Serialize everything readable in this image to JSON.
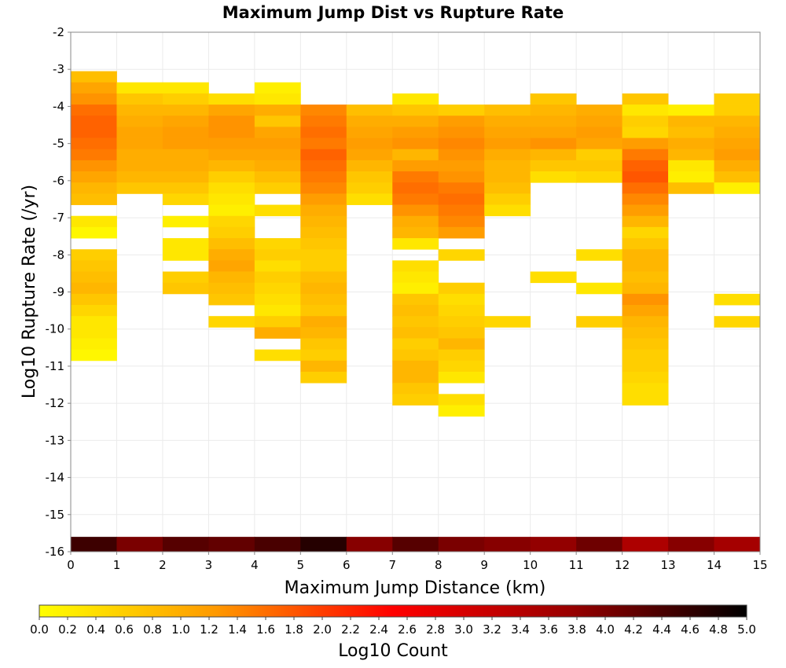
{
  "chart_data": {
    "type": "heatmap",
    "title": "Maximum Jump Dist vs Rupture Rate",
    "xlabel": "Maximum Jump Distance (km)",
    "ylabel": "Log10 Rupture Rate (/yr)",
    "xlim": [
      0,
      15
    ],
    "ylim": [
      -16,
      -2
    ],
    "xticks": [
      0,
      1,
      2,
      3,
      4,
      5,
      6,
      7,
      8,
      9,
      10,
      11,
      12,
      13,
      14,
      15
    ],
    "yticks": [
      -2,
      -3,
      -4,
      -5,
      -6,
      -7,
      -8,
      -9,
      -10,
      -11,
      -12,
      -13,
      -14,
      -15,
      -16
    ],
    "grid": true,
    "colorbar": {
      "label": "Log10 Count",
      "range": [
        0,
        5
      ],
      "ticks": [
        "0.0",
        "0.2",
        "0.4",
        "0.6",
        "0.8",
        "1.0",
        "1.2",
        "1.4",
        "1.6",
        "1.8",
        "2.0",
        "2.2",
        "2.4",
        "2.6",
        "2.8",
        "3.0",
        "3.2",
        "3.4",
        "3.6",
        "3.8",
        "4.0",
        "4.2",
        "4.4",
        "4.6",
        "4.8",
        "5.0"
      ],
      "colors": [
        "#ffff00",
        "#ff9900",
        "#ff0000",
        "#990000",
        "#000000"
      ]
    },
    "bin_height": 0.3,
    "columns": [
      {
        "x_start": 0,
        "y_start": -3.05,
        "values": [
          0.8,
          1.1,
          1.3,
          1.6,
          1.7,
          1.7,
          1.6,
          1.5,
          1.3,
          1.1,
          0.9,
          0.8,
          null,
          0.3,
          0.1,
          null,
          0.6,
          0.7,
          0.8,
          0.9,
          0.7,
          0.5,
          0.3,
          0.3,
          0.2,
          0.1
        ]
      },
      {
        "x_start": 1,
        "y_start": -3.35,
        "values": [
          0.3,
          0.7,
          0.9,
          1.0,
          1.1,
          1.1,
          1.0,
          1.0,
          0.9,
          0.7
        ]
      },
      {
        "x_start": 2,
        "y_start": -3.35,
        "values": [
          0.3,
          0.6,
          0.9,
          1.1,
          1.2,
          1.2,
          1.0,
          1.0,
          0.9,
          0.7,
          0.5,
          null,
          0.2,
          null,
          0.3,
          0.3,
          null,
          0.6,
          0.7
        ]
      },
      {
        "x_start": 3,
        "y_start": -3.65,
        "values": [
          0.4,
          1.1,
          1.3,
          1.3,
          1.2,
          1.1,
          0.9,
          0.6,
          0.4,
          0.3,
          0.2,
          0.5,
          0.6,
          0.8,
          1.0,
          1.1,
          0.9,
          0.8,
          0.7,
          null,
          0.5
        ]
      },
      {
        "x_start": 4,
        "y_start": -3.35,
        "values": [
          0.2,
          0.3,
          1.0,
          0.7,
          1.1,
          1.2,
          1.1,
          1.0,
          0.8,
          0.6,
          null,
          0.4,
          null,
          null,
          0.5,
          0.6,
          0.4,
          0.6,
          0.5,
          0.4,
          0.3,
          0.6,
          1.0,
          null,
          0.4
        ]
      },
      {
        "x_start": 5,
        "y_start": -3.95,
        "values": [
          1.4,
          1.5,
          1.6,
          1.5,
          1.7,
          1.6,
          1.5,
          1.4,
          1.2,
          1.0,
          0.9,
          0.8,
          0.7,
          0.6,
          0.6,
          0.8,
          0.9,
          0.8,
          0.7,
          1.0,
          0.9,
          0.7,
          0.6,
          0.9,
          0.6
        ]
      },
      {
        "x_start": 6,
        "y_start": -3.95,
        "values": [
          0.8,
          1.0,
          1.1,
          1.2,
          1.1,
          0.9,
          0.7,
          0.6,
          0.4
        ]
      },
      {
        "x_start": 7,
        "y_start": -3.65,
        "values": [
          0.3,
          0.7,
          1.0,
          1.2,
          1.3,
          0.9,
          1.2,
          1.5,
          1.6,
          1.5,
          1.3,
          1.0,
          0.9,
          0.3,
          null,
          0.4,
          0.3,
          0.2,
          0.7,
          0.8,
          0.7,
          0.8,
          0.6,
          0.7,
          0.9,
          0.9,
          0.7,
          0.6
        ]
      },
      {
        "x_start": 8,
        "y_start": -3.95,
        "values": [
          0.6,
          1.2,
          1.3,
          1.4,
          1.3,
          1.2,
          1.3,
          1.5,
          1.6,
          1.5,
          1.4,
          1.2,
          null,
          0.5,
          null,
          null,
          0.6,
          0.4,
          0.5,
          0.6,
          0.7,
          0.9,
          0.6,
          0.5,
          0.3,
          null,
          0.4,
          0.2
        ]
      },
      {
        "x_start": 9,
        "y_start": -3.95,
        "values": [
          0.8,
          1.0,
          1.1,
          1.2,
          1.0,
          0.9,
          0.9,
          0.8,
          0.6,
          0.4,
          null,
          null,
          null,
          null,
          null,
          null,
          null,
          null,
          null,
          0.5
        ]
      },
      {
        "x_start": 10,
        "y_start": -3.65,
        "values": [
          0.7,
          0.9,
          1.0,
          1.1,
          1.3,
          0.9,
          0.7,
          0.4,
          null,
          null,
          null,
          null,
          null,
          null,
          null,
          null,
          0.4
        ]
      },
      {
        "x_start": 11,
        "y_start": -3.95,
        "values": [
          1.0,
          1.1,
          1.2,
          1.1,
          0.6,
          0.7,
          0.5,
          null,
          null,
          null,
          null,
          null,
          null,
          0.4,
          null,
          null,
          0.3,
          null,
          null,
          0.6
        ]
      },
      {
        "x_start": 12,
        "y_start": -3.65,
        "values": [
          0.7,
          0.3,
          0.6,
          0.5,
          1.2,
          1.5,
          1.7,
          1.8,
          1.6,
          1.4,
          1.2,
          0.9,
          0.5,
          0.7,
          0.9,
          0.9,
          0.8,
          0.9,
          1.3,
          1.1,
          0.9,
          0.8,
          0.7,
          0.6,
          0.6,
          0.5,
          0.4,
          0.4
        ]
      },
      {
        "x_start": 13,
        "y_start": -3.95,
        "values": [
          0.2,
          0.9,
          0.8,
          1.0,
          0.9,
          0.3,
          0.2,
          0.8
        ]
      },
      {
        "x_start": 14,
        "y_start": -3.65,
        "values": [
          0.6,
          0.6,
          0.9,
          1.0,
          1.1,
          1.2,
          1.0,
          0.8,
          0.2,
          null,
          null,
          null,
          null,
          null,
          null,
          null,
          null,
          null,
          0.4,
          null,
          0.5
        ]
      }
    ],
    "bottom_row": {
      "y": -16,
      "height": 0.2,
      "values": [
        4.5,
        4.0,
        4.3,
        4.2,
        4.4,
        4.7,
        3.9,
        4.3,
        4.0,
        3.9,
        3.8,
        4.1,
        3.5,
        3.9,
        3.6
      ]
    }
  }
}
